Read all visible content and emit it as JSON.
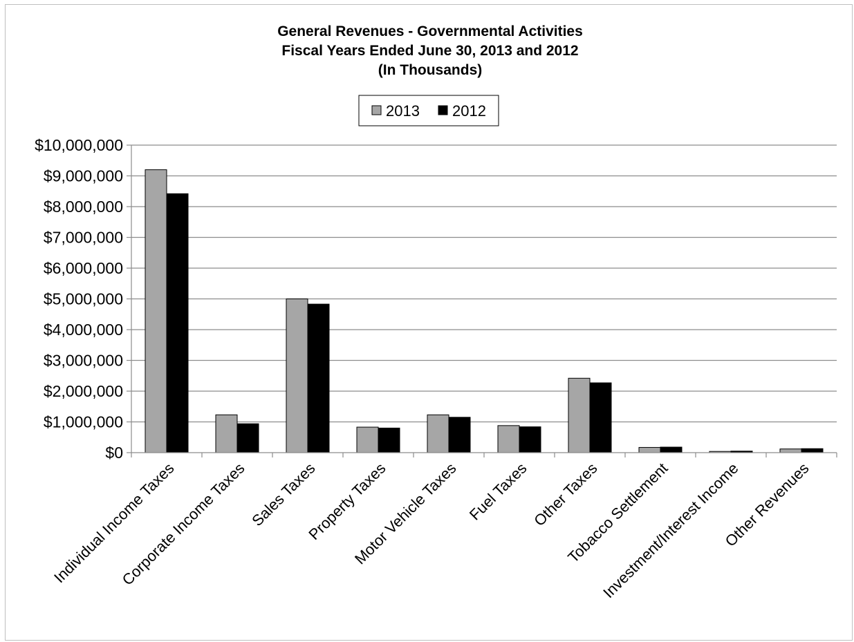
{
  "chart_data": {
    "type": "bar",
    "title_lines": [
      "General Revenues - Governmental Activities",
      "Fiscal Years Ended June 30, 2013 and 2012",
      "(In Thousands)"
    ],
    "xlabel": "",
    "ylabel": "",
    "categories": [
      "Individual Income Taxes",
      "Corporate Income Taxes",
      "Sales Taxes",
      "Property Taxes",
      "Motor Vehicle Taxes",
      "Fuel Taxes",
      "Other Taxes",
      "Tobacco Settlement",
      "Investment/Interest Income",
      "Other Revenues"
    ],
    "series": [
      {
        "name": "2013",
        "color": "#a6a6a6",
        "values": [
          9200000,
          1230000,
          5000000,
          830000,
          1230000,
          880000,
          2420000,
          170000,
          40000,
          120000
        ]
      },
      {
        "name": "2012",
        "color": "#000000",
        "values": [
          8420000,
          940000,
          4830000,
          800000,
          1150000,
          840000,
          2270000,
          180000,
          50000,
          130000
        ]
      }
    ],
    "ylim": [
      0,
      10000000
    ],
    "yticks": [
      "$0",
      "$1,000,000",
      "$2,000,000",
      "$3,000,000",
      "$4,000,000",
      "$5,000,000",
      "$6,000,000",
      "$7,000,000",
      "$8,000,000",
      "$9,000,000",
      "$10,000,000"
    ],
    "grid": true,
    "legend_position": "top-center"
  }
}
